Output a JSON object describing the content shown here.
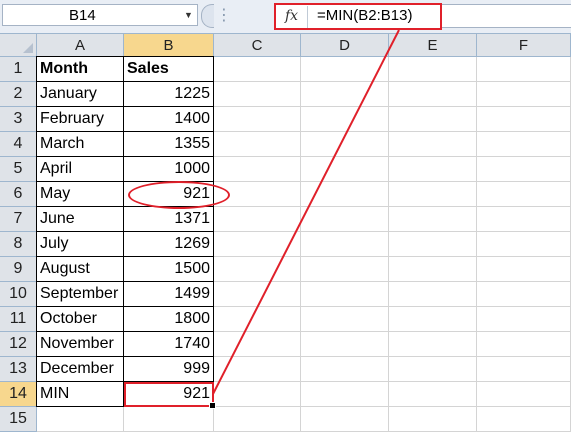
{
  "formula_bar": {
    "name_box": "B14",
    "fx_label": "fx",
    "formula": "=MIN(B2:B13)"
  },
  "columns": [
    "A",
    "B",
    "C",
    "D",
    "E",
    "F"
  ],
  "rows": [
    "1",
    "2",
    "3",
    "4",
    "5",
    "6",
    "7",
    "8",
    "9",
    "10",
    "11",
    "12",
    "13",
    "14",
    "15"
  ],
  "sheet": {
    "header": {
      "month": "Month",
      "sales": "Sales"
    },
    "data": [
      {
        "month": "January",
        "sales": "1225"
      },
      {
        "month": "February",
        "sales": "1400"
      },
      {
        "month": "March",
        "sales": "1355"
      },
      {
        "month": "April",
        "sales": "1000"
      },
      {
        "month": "May",
        "sales": "921"
      },
      {
        "month": "June",
        "sales": "1371"
      },
      {
        "month": "July",
        "sales": "1269"
      },
      {
        "month": "August",
        "sales": "1500"
      },
      {
        "month": "September",
        "sales": "1499"
      },
      {
        "month": "October",
        "sales": "1800"
      },
      {
        "month": "November",
        "sales": "1740"
      },
      {
        "month": "December",
        "sales": "999"
      }
    ],
    "min_row": {
      "label": "MIN",
      "value": "921"
    }
  },
  "colors": {
    "annotation": "#e0202a",
    "selected_header": "#f7d78e",
    "header_bg": "#dfe3e8"
  }
}
